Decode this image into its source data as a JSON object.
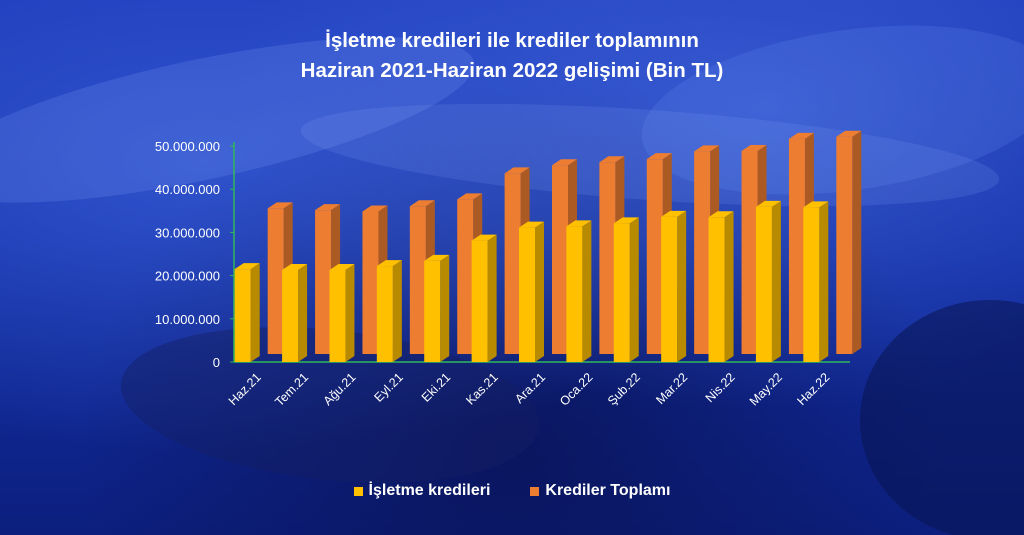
{
  "colors": {
    "business_loans": "#ffc000",
    "total_loans": "#ed7d31",
    "axis": "#2fb85a",
    "text": "#ffffff"
  },
  "chart_data": {
    "type": "bar",
    "title_line1": "İşletme kredileri ile krediler toplamının",
    "title_line2": "Haziran 2021-Haziran 2022 gelişimi (Bin TL)",
    "categories": [
      "Haz.21",
      "Tem.21",
      "Ağu.21",
      "Eyl.21",
      "Eki.21",
      "Kas.21",
      "Ara.21",
      "Oca.22",
      "Şub.22",
      "Mar.22",
      "Nis.22",
      "May.22",
      "Haz.22"
    ],
    "series": [
      {
        "name": "İşletme kredileri",
        "values": [
          21500000,
          21300000,
          21300000,
          22200000,
          23400000,
          28100000,
          31100000,
          31400000,
          32100000,
          33600000,
          33500000,
          35900000,
          35800000
        ]
      },
      {
        "name": "Krediler Toplamı",
        "values": [
          33700000,
          33300000,
          33000000,
          34200000,
          35800000,
          41800000,
          43700000,
          44400000,
          45100000,
          46900000,
          47000000,
          49800000,
          50300000
        ]
      }
    ],
    "yticks": [
      "0",
      "10.000.000",
      "20.000.000",
      "30.000.000",
      "40.000.000",
      "50.000.000"
    ],
    "ylim": [
      0,
      50000000
    ],
    "grid": false,
    "legend": "bottom"
  }
}
